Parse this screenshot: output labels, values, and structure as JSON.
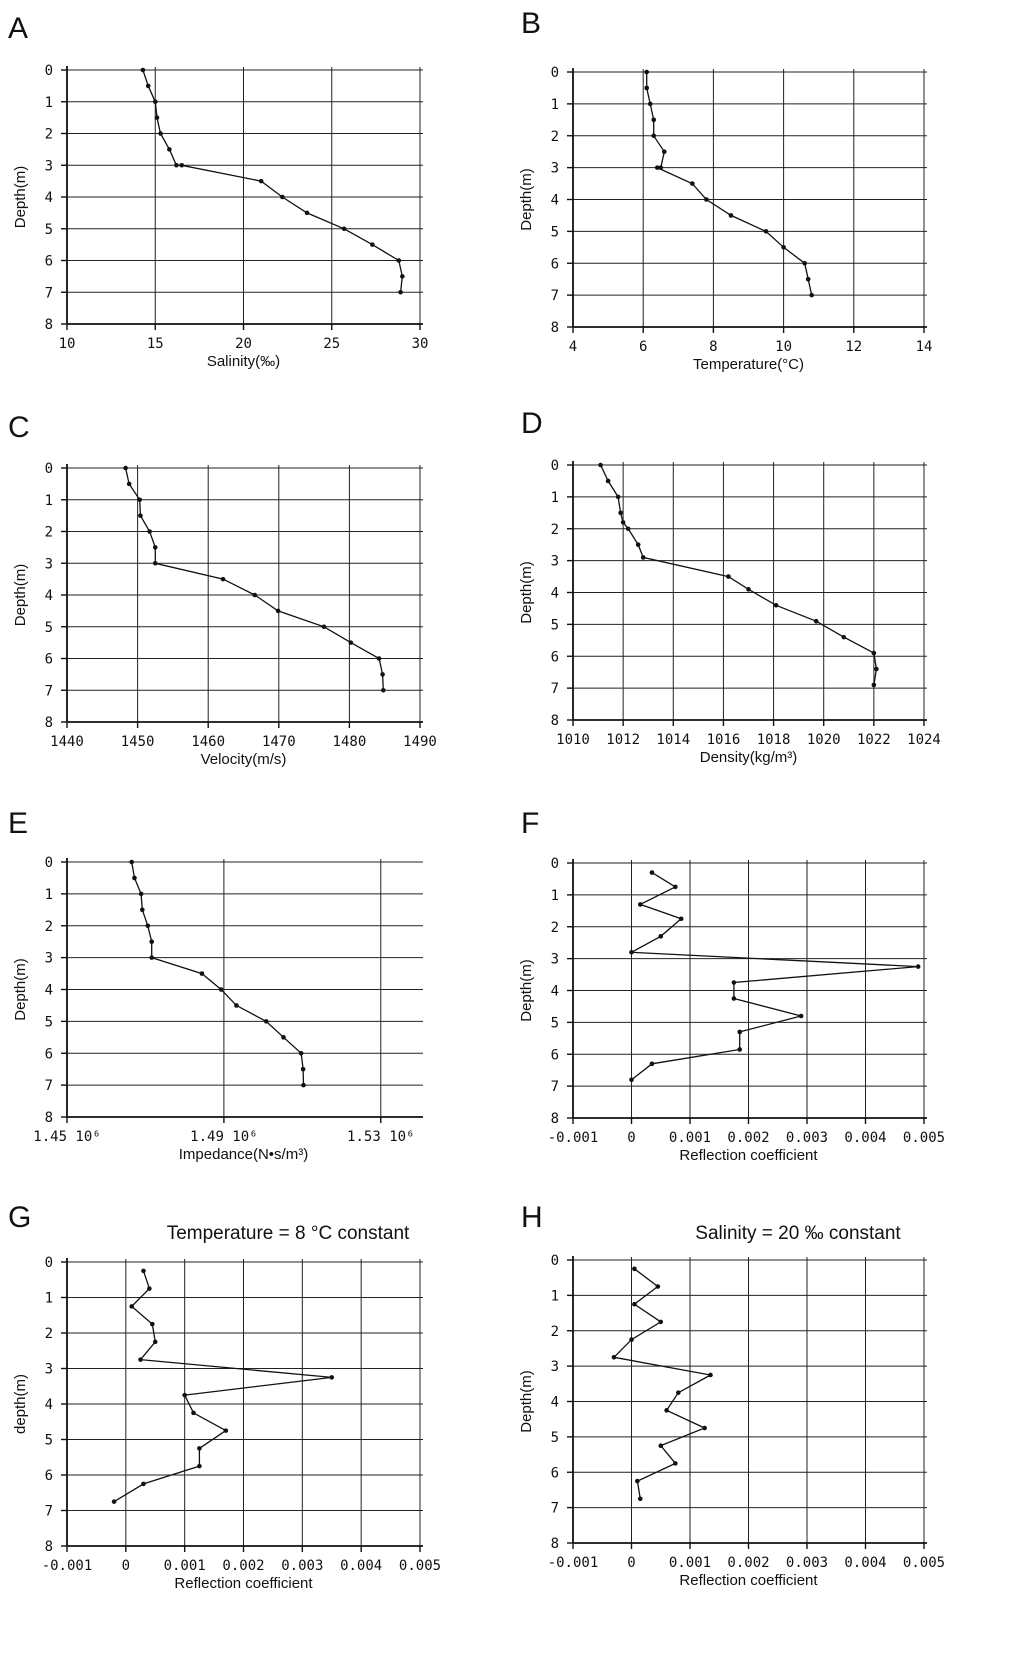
{
  "chart_data": [
    {
      "panel": "A",
      "type": "line",
      "title": "",
      "xlabel": "Salinity(‰)",
      "ylabel": "Depth(m)",
      "xlim": [
        10,
        30
      ],
      "ylim": [
        0,
        8
      ],
      "x_ticks": [
        10,
        15,
        20,
        25,
        30
      ],
      "x_tick_labels": [
        "10",
        "15",
        "20",
        "25",
        "30"
      ],
      "y_ticks": [
        0,
        1,
        2,
        3,
        4,
        5,
        6,
        7,
        8
      ],
      "y_tick_labels": [
        "0",
        "1",
        "2",
        "3",
        "4",
        "5",
        "6",
        "7",
        "8"
      ],
      "grid": true,
      "series": [
        {
          "x": [
            14.3,
            14.6,
            15.0,
            15.1,
            15.3,
            15.8,
            16.2,
            16.5,
            21.0,
            22.2,
            23.6,
            25.7,
            27.3,
            28.8,
            29.0,
            28.9
          ],
          "y": [
            0,
            0.5,
            1.0,
            1.5,
            2.0,
            2.5,
            3.0,
            3.0,
            3.5,
            4.0,
            4.5,
            5.0,
            5.5,
            6.0,
            6.5,
            7.0
          ]
        }
      ]
    },
    {
      "panel": "B",
      "type": "line",
      "title": "",
      "xlabel": "Temperature(°C)",
      "ylabel": "Depth(m)",
      "xlim": [
        4,
        14
      ],
      "ylim": [
        0,
        8
      ],
      "x_ticks": [
        4,
        6,
        8,
        10,
        12,
        14
      ],
      "x_tick_labels": [
        "4",
        "6",
        "8",
        "10",
        "12",
        "14"
      ],
      "y_ticks": [
        0,
        1,
        2,
        3,
        4,
        5,
        6,
        7,
        8
      ],
      "y_tick_labels": [
        "0",
        "1",
        "2",
        "3",
        "4",
        "5",
        "6",
        "7",
        "8"
      ],
      "grid": true,
      "series": [
        {
          "x": [
            6.1,
            6.1,
            6.2,
            6.3,
            6.3,
            6.6,
            6.5,
            6.4,
            7.4,
            7.8,
            8.5,
            9.5,
            10.0,
            10.6,
            10.7,
            10.8
          ],
          "y": [
            0,
            0.5,
            1.0,
            1.5,
            2.0,
            2.5,
            3.0,
            3.0,
            3.5,
            4.0,
            4.5,
            5.0,
            5.5,
            6.0,
            6.5,
            7.0
          ]
        }
      ]
    },
    {
      "panel": "C",
      "type": "line",
      "title": "",
      "xlabel": "Velocity(m/s)",
      "ylabel": "Depth(m)",
      "xlim": [
        1440,
        1490
      ],
      "ylim": [
        0,
        8
      ],
      "x_ticks": [
        1440,
        1450,
        1460,
        1470,
        1480,
        1490
      ],
      "x_tick_labels": [
        "1440",
        "1450",
        "1460",
        "1470",
        "1480",
        "1490"
      ],
      "y_ticks": [
        0,
        1,
        2,
        3,
        4,
        5,
        6,
        7,
        8
      ],
      "y_tick_labels": [
        "0",
        "1",
        "2",
        "3",
        "4",
        "5",
        "6",
        "7",
        "8"
      ],
      "grid": true,
      "series": [
        {
          "x": [
            1448.3,
            1448.8,
            1450.3,
            1450.4,
            1451.7,
            1452.5,
            1452.5,
            1462.1,
            1466.6,
            1469.9,
            1476.4,
            1480.2,
            1484.2,
            1484.7,
            1484.8
          ],
          "y": [
            0,
            0.5,
            1.0,
            1.5,
            2.0,
            2.5,
            3.0,
            3.5,
            4.0,
            4.5,
            5.0,
            5.5,
            6.0,
            6.5,
            7.0
          ]
        }
      ]
    },
    {
      "panel": "D",
      "type": "line",
      "title": "",
      "xlabel": "Density(kg/m³)",
      "ylabel": "Depth(m)",
      "xlim": [
        1010,
        1024
      ],
      "ylim": [
        0,
        8
      ],
      "x_ticks": [
        1010,
        1012,
        1014,
        1016,
        1018,
        1020,
        1022,
        1024
      ],
      "x_tick_labels": [
        "1010",
        "1012",
        "1014",
        "1016",
        "1018",
        "1020",
        "1022",
        "1024"
      ],
      "y_ticks": [
        0,
        1,
        2,
        3,
        4,
        5,
        6,
        7,
        8
      ],
      "y_tick_labels": [
        "0",
        "1",
        "2",
        "3",
        "4",
        "5",
        "6",
        "7",
        "8"
      ],
      "grid": true,
      "series": [
        {
          "x": [
            1011.1,
            1011.4,
            1011.8,
            1011.9,
            1012.0,
            1012.2,
            1012.6,
            1012.8,
            1016.2,
            1017.0,
            1018.1,
            1019.7,
            1020.8,
            1022.0,
            1022.1,
            1022.0
          ],
          "y": [
            0,
            0.5,
            1.0,
            1.5,
            1.8,
            2.0,
            2.5,
            2.9,
            3.5,
            3.9,
            4.4,
            4.9,
            5.4,
            5.9,
            6.4,
            6.9
          ]
        }
      ]
    },
    {
      "panel": "E",
      "type": "line",
      "title": "",
      "xlabel": "Impedance(N•s/m³)",
      "ylabel": "Depth(m)",
      "xlim": [
        1450000,
        1540000
      ],
      "ylim": [
        0,
        8
      ],
      "x_ticks": [
        1450000,
        1490000,
        1530000
      ],
      "x_tick_labels": [
        "1.45 10⁶",
        "1.49 10⁶",
        "1.53 10⁶"
      ],
      "y_ticks": [
        0,
        1,
        2,
        3,
        4,
        5,
        6,
        7,
        8
      ],
      "y_tick_labels": [
        "0",
        "1",
        "2",
        "3",
        "4",
        "5",
        "6",
        "7",
        "8"
      ],
      "grid": true,
      "series": [
        {
          "x": [
            1466500,
            1467200,
            1468900,
            1469200,
            1470600,
            1471600,
            1471600,
            1484400,
            1489300,
            1493200,
            1500800,
            1505200,
            1509700,
            1510200,
            1510300
          ],
          "y": [
            0,
            0.5,
            1.0,
            1.5,
            2.0,
            2.5,
            3.0,
            3.5,
            4.0,
            4.5,
            5.0,
            5.5,
            6.0,
            6.5,
            7.0
          ]
        }
      ]
    },
    {
      "panel": "F",
      "type": "line",
      "title": "",
      "xlabel": "Reflection   coefficient",
      "ylabel": "Depth(m)",
      "xlim": [
        -0.001,
        0.005
      ],
      "ylim": [
        0,
        8
      ],
      "x_ticks": [
        -0.001,
        0,
        0.001,
        0.002,
        0.003,
        0.004,
        0.005
      ],
      "x_tick_labels": [
        "-0.001",
        "0",
        "0.001",
        "0.002",
        "0.003",
        "0.004",
        "0.005"
      ],
      "y_ticks": [
        0,
        1,
        2,
        3,
        4,
        5,
        6,
        7,
        8
      ],
      "y_tick_labels": [
        "0",
        "1",
        "2",
        "3",
        "4",
        "5",
        "6",
        "7",
        "8"
      ],
      "grid": true,
      "series": [
        {
          "x": [
            0.00035,
            0.00075,
            0.00015,
            0.00085,
            0.0005,
            0.0,
            0.0049,
            0.00175,
            0.00175,
            0.0029,
            0.00185,
            0.00185,
            0.00035,
            0.0
          ],
          "y": [
            0.3,
            0.75,
            1.3,
            1.75,
            2.3,
            2.8,
            3.25,
            3.75,
            4.25,
            4.8,
            5.3,
            5.85,
            6.3,
            6.8
          ]
        }
      ]
    },
    {
      "panel": "G",
      "type": "line",
      "title": "Temperature = 8 °C  constant",
      "xlabel": "Reflection   coefficient",
      "ylabel": "depth(m)",
      "xlim": [
        -0.001,
        0.005
      ],
      "ylim": [
        0,
        8
      ],
      "x_ticks": [
        -0.001,
        0,
        0.001,
        0.002,
        0.003,
        0.004,
        0.005
      ],
      "x_tick_labels": [
        "-0.001",
        "0",
        "0.001",
        "0.002",
        "0.003",
        "0.004",
        "0.005"
      ],
      "y_ticks": [
        0,
        1,
        2,
        3,
        4,
        5,
        6,
        7,
        8
      ],
      "y_tick_labels": [
        "0",
        "1",
        "2",
        "3",
        "4",
        "5",
        "6",
        "7",
        "8"
      ],
      "grid": true,
      "series": [
        {
          "x": [
            0.0003,
            0.0004,
            0.0001,
            0.00045,
            0.0005,
            0.00025,
            0.0035,
            0.001,
            0.00115,
            0.0017,
            0.00125,
            0.00125,
            0.0003,
            -0.0002
          ],
          "y": [
            0.25,
            0.75,
            1.25,
            1.75,
            2.25,
            2.75,
            3.25,
            3.75,
            4.25,
            4.75,
            5.25,
            5.75,
            6.25,
            6.75
          ]
        }
      ]
    },
    {
      "panel": "H",
      "type": "line",
      "title": "Salinity = 20 ‰  constant",
      "xlabel": "Reflection   coefficient",
      "ylabel": "Depth(m)",
      "xlim": [
        -0.001,
        0.005
      ],
      "ylim": [
        0,
        8
      ],
      "x_ticks": [
        -0.001,
        0,
        0.001,
        0.002,
        0.003,
        0.004,
        0.005
      ],
      "x_tick_labels": [
        "-0.001",
        "0",
        "0.001",
        "0.002",
        "0.003",
        "0.004",
        "0.005"
      ],
      "y_ticks": [
        0,
        1,
        2,
        3,
        4,
        5,
        6,
        7,
        8
      ],
      "y_tick_labels": [
        "0",
        "1",
        "2",
        "3",
        "4",
        "5",
        "6",
        "7",
        "8"
      ],
      "grid": true,
      "series": [
        {
          "x": [
            5e-05,
            0.00045,
            5e-05,
            0.0005,
            0.0,
            -0.0003,
            0.00135,
            0.0008,
            0.0006,
            0.00125,
            0.0005,
            0.00075,
            0.0001,
            0.00015
          ],
          "y": [
            0.25,
            0.75,
            1.25,
            1.75,
            2.25,
            2.75,
            3.25,
            3.75,
            4.25,
            4.75,
            5.25,
            5.75,
            6.25,
            6.75
          ]
        }
      ]
    }
  ]
}
